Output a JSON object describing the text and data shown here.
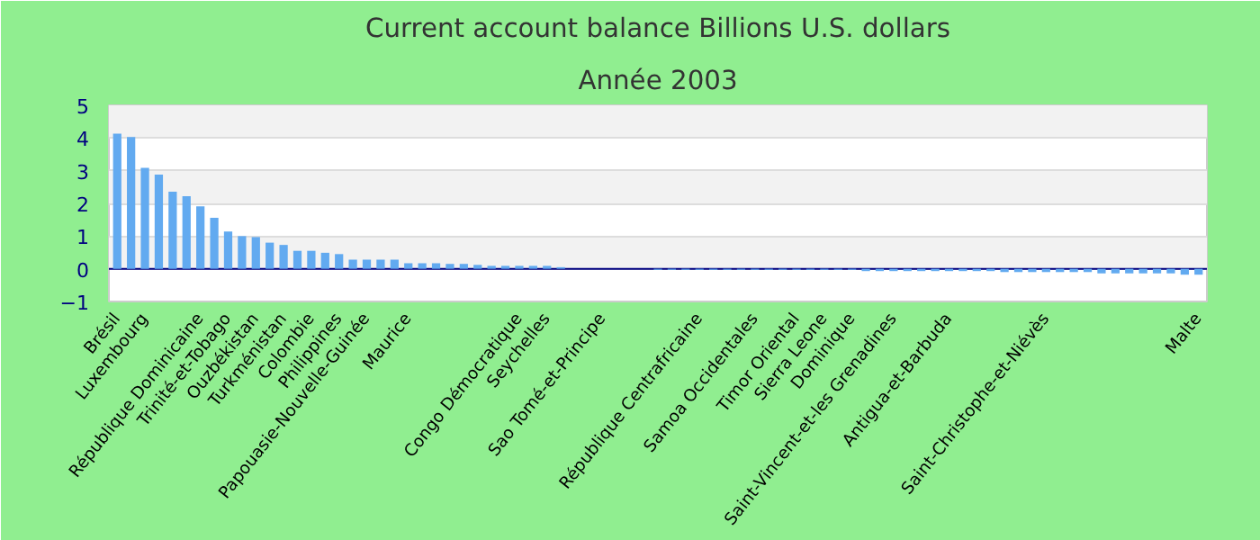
{
  "chart_data": {
    "type": "bar",
    "title": "Current account balance Billions U.S. dollars",
    "subtitle": "Année 2003",
    "categories": [
      "Brésil",
      null,
      "Luxembourg",
      null,
      null,
      null,
      "République Dominicaine",
      null,
      "Trinité-et-Tobago",
      null,
      "Ouzbékistan",
      null,
      "Turkménistan",
      null,
      "Colombie",
      null,
      "Philippines",
      null,
      "Papouasie-Nouvelle-Guinée",
      null,
      null,
      "Maurice",
      null,
      null,
      null,
      null,
      null,
      null,
      null,
      "Congo Démocratique",
      null,
      "Seychelles",
      null,
      null,
      null,
      "Sao Tomé-et-Principe",
      null,
      null,
      null,
      null,
      null,
      null,
      "République Centrafricaine",
      null,
      null,
      null,
      "Samoa Occidentales",
      null,
      null,
      "Timor Oriental",
      null,
      "Sierra Leone",
      null,
      "Dominique",
      null,
      null,
      "Saint-Vincent-et-les Grenadines",
      null,
      null,
      null,
      "Antigua-et-Barbuda",
      null,
      null,
      null,
      null,
      null,
      null,
      "Saint-Christophe-et-Niévès",
      null,
      null,
      null,
      null,
      null,
      null,
      null,
      null,
      null,
      null,
      "Malte"
    ],
    "series": [
      {
        "color": "#62aaf0",
        "values": [
          4.13,
          4.03,
          3.09,
          2.88,
          2.36,
          2.22,
          1.91,
          1.56,
          1.14,
          1.0,
          0.97,
          0.8,
          0.73,
          0.55,
          0.55,
          0.49,
          0.45,
          0.28,
          0.28,
          0.28,
          0.28,
          0.17,
          0.17,
          0.17,
          0.15,
          0.15,
          0.12,
          0.09,
          0.09,
          0.09,
          0.09,
          0.09,
          0.05,
          0,
          0,
          0,
          0,
          0,
          0,
          -0.03,
          -0.03,
          -0.03,
          -0.03,
          -0.03,
          -0.03,
          -0.03,
          -0.03,
          -0.03,
          -0.03,
          -0.03,
          -0.03,
          -0.03,
          -0.03,
          -0.03,
          -0.07,
          -0.07,
          -0.07,
          -0.07,
          -0.07,
          -0.07,
          -0.07,
          -0.07,
          -0.07,
          -0.07,
          -0.1,
          -0.1,
          -0.1,
          -0.1,
          -0.1,
          -0.1,
          -0.1,
          -0.14,
          -0.14,
          -0.14,
          -0.14,
          -0.14,
          -0.14,
          -0.18,
          -0.18
        ]
      }
    ],
    "ylim": [
      -1,
      5
    ],
    "yticks": [
      -1,
      0,
      1,
      2,
      3,
      4,
      5
    ],
    "grid": "y",
    "ref_lines": [
      {
        "axis": "y",
        "value": 0,
        "color": "#000080"
      }
    ]
  }
}
